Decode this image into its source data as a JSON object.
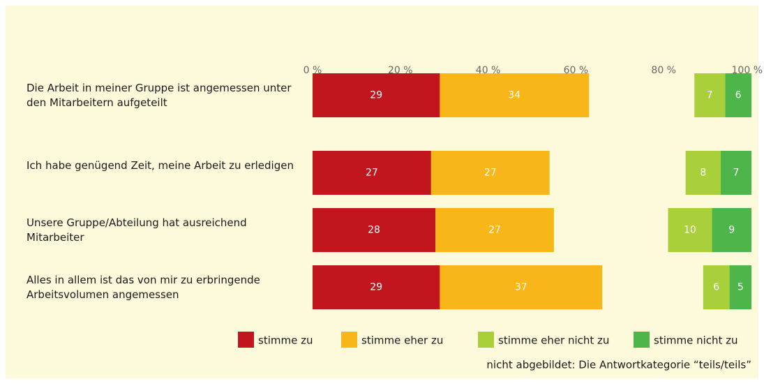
{
  "chart_data": {
    "type": "stacked_bar_horizontal",
    "categories": [
      "Die Arbeit in meiner Gruppe ist angemessen unter den Mitarbeitern aufgeteilt",
      "Ich habe genügend Zeit, meine Arbeit zu erledigen",
      "Unsere Gruppe/Abteilung hat ausreichend Mitarbeiter",
      "Alles in allem ist das von mir zu erbringende Arbeitsvolumen angemessen"
    ],
    "series": [
      {
        "name": "stimme zu",
        "color": "#c1161e",
        "values": [
          29,
          27,
          28,
          29
        ]
      },
      {
        "name": "stimme eher zu",
        "color": "#f9b619",
        "values": [
          34,
          27,
          27,
          37
        ]
      },
      {
        "name": "stimme eher nicht zu",
        "color": "#a9cf3b",
        "values": [
          7,
          8,
          10,
          6
        ]
      },
      {
        "name": "stimme nicht zu",
        "color": "#4db549",
        "values": [
          6,
          7,
          9,
          5
        ]
      }
    ],
    "xlim": [
      0,
      100
    ],
    "xticks": [
      {
        "value": 0,
        "label": "0 %"
      },
      {
        "value": 20,
        "label": "20 %"
      },
      {
        "value": 40,
        "label": "40 %"
      },
      {
        "value": 60,
        "label": "60 %"
      },
      {
        "value": 80,
        "label": "80 %"
      },
      {
        "value": 100,
        "label": "100 %"
      }
    ],
    "note": "nicht abgebildet: Die Antwortkategorie “teils/teils”"
  }
}
